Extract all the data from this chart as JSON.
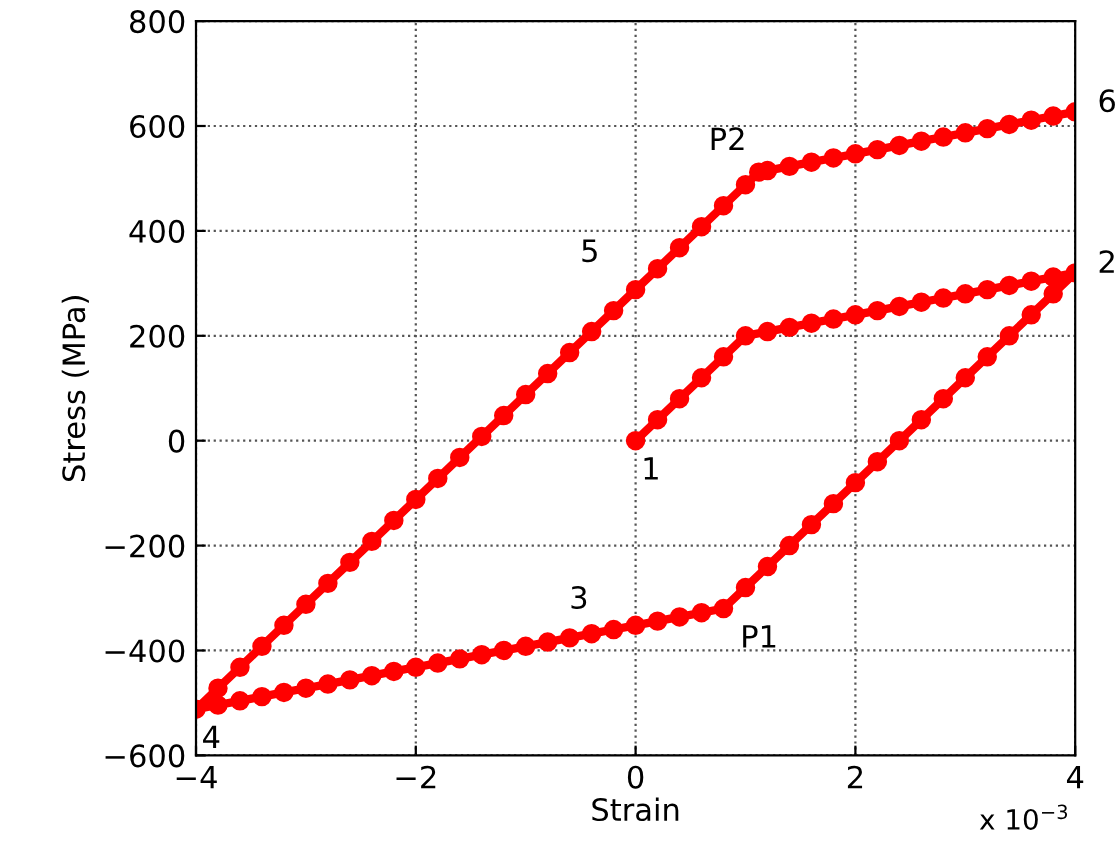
{
  "chart_data": {
    "type": "line",
    "xlabel": "Strain",
    "ylabel": "Stress (MPa)",
    "series": [
      {
        "color": "#ff0000",
        "x": [
          0,
          0.2,
          0.4,
          0.6,
          0.8,
          1.0,
          1.2,
          1.4,
          1.6,
          1.8,
          2.0,
          2.2,
          2.4,
          2.6,
          2.8,
          3.0,
          3.2,
          3.4,
          3.6,
          3.8,
          4.0,
          3.8,
          3.6,
          3.4,
          3.2,
          3.0,
          2.8,
          2.6,
          2.4,
          2.2,
          2.0,
          1.8,
          1.6,
          1.4,
          1.2,
          1.0,
          0.8,
          0.6,
          0.4,
          0.2,
          0,
          -0.2,
          -0.4,
          -0.6,
          -0.8,
          -1.0,
          -1.2,
          -1.4,
          -1.6,
          -1.8,
          -2.0,
          -2.2,
          -2.4,
          -2.6,
          -2.8,
          -3.0,
          -3.2,
          -3.4,
          -3.6,
          -3.8,
          -4.0,
          -3.8,
          -3.6,
          -3.4,
          -3.2,
          -3.0,
          -2.8,
          -2.6,
          -2.4,
          -2.2,
          -2.0,
          -1.8,
          -1.6,
          -1.4,
          -1.2,
          -1.0,
          -0.8,
          -0.6,
          -0.4,
          -0.2,
          0,
          0.2,
          0.4,
          0.6,
          0.8,
          1.0,
          1.12,
          1.2,
          1.4,
          1.6,
          1.8,
          2.0,
          2.2,
          2.4,
          2.6,
          2.8,
          3.0,
          3.2,
          3.4,
          3.6,
          3.8,
          4.0
        ],
        "values": [
          0,
          40,
          80,
          120,
          160,
          200,
          208,
          216,
          224,
          232,
          240,
          248,
          256,
          264,
          272,
          280,
          288,
          296,
          304,
          312,
          320,
          280,
          240,
          200,
          160,
          120,
          80,
          40,
          0,
          -40,
          -80,
          -120,
          -160,
          -200,
          -240,
          -280,
          -320,
          -328,
          -336,
          -344,
          -352,
          -360,
          -368,
          -376,
          -384,
          -392,
          -400,
          -408,
          -416,
          -424,
          -432,
          -440,
          -448,
          -456,
          -464,
          -472,
          -480,
          -488,
          -496,
          -504,
          -512,
          -472,
          -432,
          -392,
          -352,
          -312,
          -272,
          -232,
          -192,
          -152,
          -112,
          -72,
          -32,
          8,
          48,
          88,
          128,
          168,
          208,
          248,
          288,
          328,
          368,
          408,
          448,
          488,
          512,
          515,
          523,
          531,
          539,
          547,
          555,
          563,
          571,
          579,
          587,
          595,
          603,
          611,
          619,
          627
        ]
      }
    ],
    "marker": "circle",
    "line_style": "solid",
    "grid": true,
    "xlim": [
      -4,
      4
    ],
    "xticks": [
      {
        "value": -4,
        "label": "−4"
      },
      {
        "value": -2,
        "label": "−2"
      },
      0,
      2,
      4
    ],
    "ylim": [
      -600,
      800
    ],
    "yticks": [
      {
        "value": -600,
        "label": "−600"
      },
      {
        "value": -400,
        "label": "−400"
      },
      {
        "value": -200,
        "label": "−200"
      },
      0,
      200,
      400,
      600,
      800
    ],
    "annotations": [
      {
        "text": "1",
        "x": 0,
        "y": 0
      },
      {
        "text": "2",
        "x": 4,
        "y": 320
      },
      {
        "text": "3",
        "x": -0.2,
        "y": -352
      },
      {
        "text": "4",
        "x": -4,
        "y": -512
      },
      {
        "text": "5",
        "x": 0,
        "y": 288
      },
      {
        "text": "6",
        "x": 4,
        "y": 627
      },
      {
        "text": "P1",
        "x": 0.8,
        "y": -320
      },
      {
        "text": "P2",
        "x": 1.12,
        "y": 512
      },
      "x 10$^{−3}$"
    ]
  }
}
